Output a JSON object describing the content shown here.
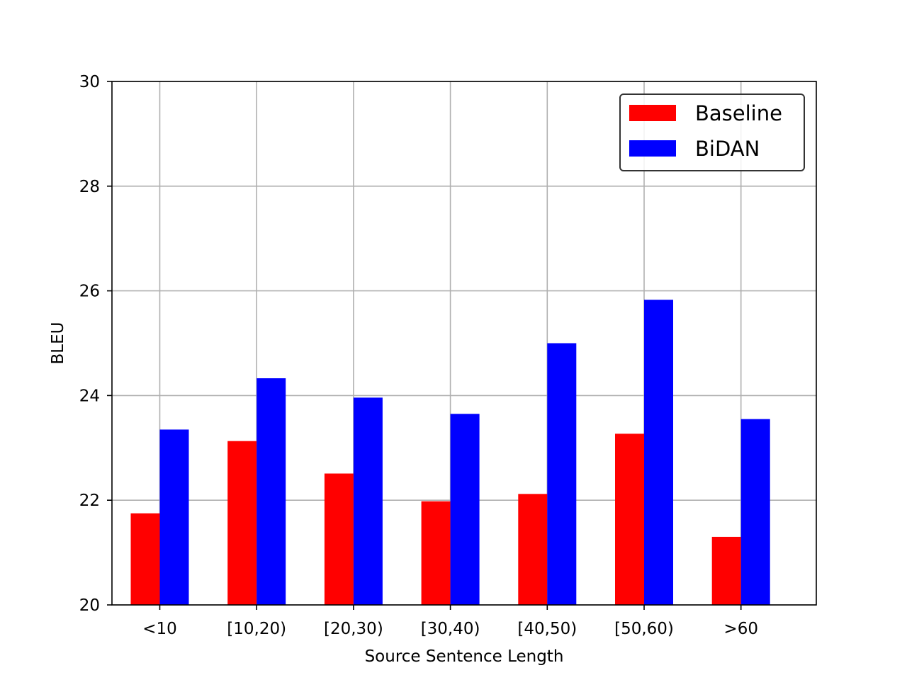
{
  "chart_data": {
    "type": "bar",
    "title": "",
    "xlabel": "Source Sentence Length",
    "ylabel": "BLEU",
    "categories": [
      "<10",
      "[10,20)",
      "[20,30)",
      "[30,40)",
      "[40,50)",
      "[50,60)",
      ">60"
    ],
    "series": [
      {
        "name": "Baseline",
        "color": "#ff0000",
        "values": [
          21.75,
          23.13,
          22.51,
          21.98,
          22.12,
          23.27,
          21.3
        ]
      },
      {
        "name": "BiDAN",
        "color": "#0000ff",
        "values": [
          23.35,
          24.33,
          23.96,
          23.65,
          25.0,
          25.83,
          23.55
        ]
      }
    ],
    "ylim": [
      20,
      30
    ],
    "yticks": [
      20,
      22,
      24,
      26,
      28,
      30
    ],
    "grid": true,
    "legend_position": "top-right"
  }
}
